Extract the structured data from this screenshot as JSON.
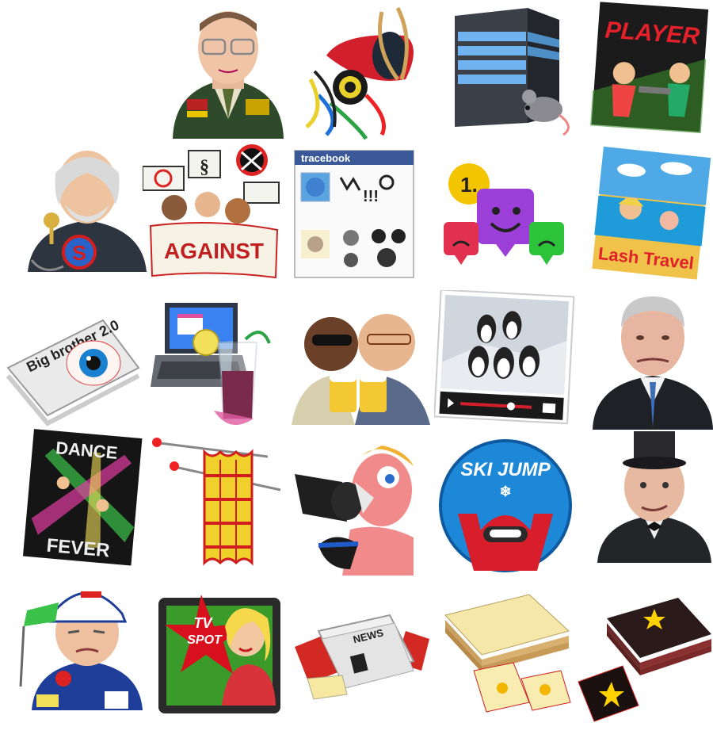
{
  "icons": {
    "player": {
      "text": "PLAYER"
    },
    "tracebook": {
      "header": "tracebook",
      "symbols": "!!!",
      "swirl": "@"
    },
    "rank": {
      "badge": "1."
    },
    "travel": {
      "text": "Lash Travel"
    },
    "against": {
      "banner": "AGAINST",
      "sign_symbol": "§"
    },
    "superhero": {
      "emblem": "S"
    },
    "bigbrother": {
      "text": "Big brother 2.0"
    },
    "dance": {
      "top": "DANCE",
      "bottom": "FEVER"
    },
    "skijump": {
      "text": "SKI JUMP"
    },
    "tvspot": {
      "line1": "TV",
      "line2": "SPOT"
    },
    "news": {
      "text": "NEWS"
    }
  },
  "colors": {
    "brand_blue": "#3b5998",
    "ski_blue": "#1e88d8",
    "ski_red": "#d81e2a",
    "alert_yellow": "#ffd200"
  }
}
